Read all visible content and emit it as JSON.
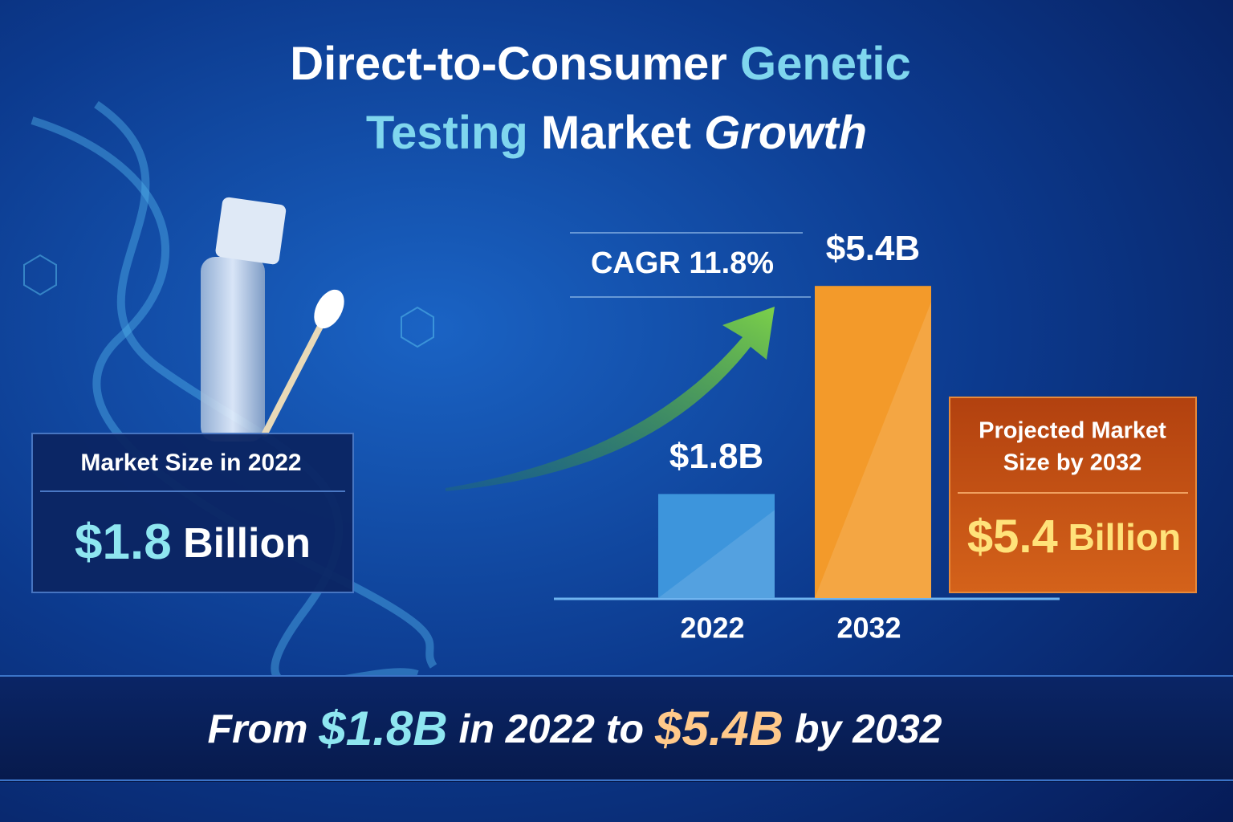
{
  "title": [
    "Direct-to-Consumer",
    "Genetic",
    "Testing",
    "Market",
    "Growth"
  ],
  "left_card": {
    "label": "Market Size in 2022",
    "amount": "$1.8",
    "unit": "Billion"
  },
  "right_card": {
    "label": [
      "Projected Market",
      "Size by 2032"
    ],
    "amount": "$5.4",
    "unit": "Billion"
  },
  "footer": [
    "From",
    "$1.8B",
    "in 2022 to",
    "$5.4B",
    "by 2032"
  ],
  "chart_data": {
    "type": "bar",
    "categories": [
      "2022",
      "2032"
    ],
    "values": [
      1.8,
      5.4
    ],
    "value_labels": [
      "$1.8B",
      "$5.4B"
    ],
    "colors": [
      "#3d95dc",
      "#f39a2a"
    ],
    "annotation": "CAGR 11.8%"
  }
}
